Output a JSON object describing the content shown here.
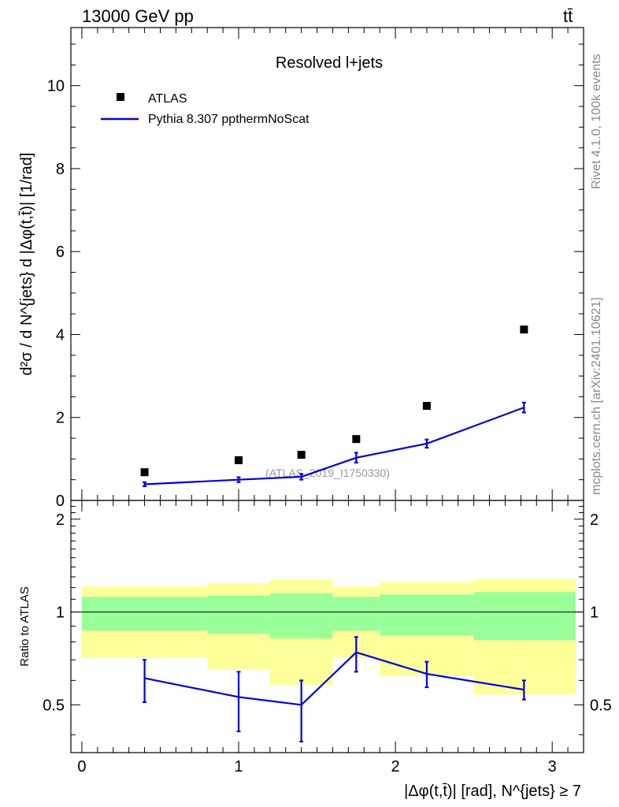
{
  "header": {
    "energy_label": "13000 GeV pp",
    "process_label": "tt̄"
  },
  "side_labels": {
    "rivet": "Rivet 4.1.0,  100k events",
    "source": "mcplots.cern.ch [arXiv:2401.10621]"
  },
  "colors": {
    "mc_line": "#0000e0",
    "data_marker": "#000000",
    "band_inner": "#99ff99",
    "band_outer": "#ffff99",
    "watermark": "#999999"
  },
  "chart_data": [
    {
      "type": "scatter",
      "panel": "main",
      "title": "Resolved l+jets",
      "watermark": "(ATLAS_2019_I1750330)",
      "ylabel": "d²σ / d N^{jets} d |Δφ(t,t̄)| [1/rad]",
      "ylim": [
        0,
        11.4
      ],
      "xlim": [
        -0.07,
        3.2
      ],
      "y_ticks": [
        "0",
        "2",
        "4",
        "6",
        "8",
        "10"
      ],
      "y_tick_values": [
        0,
        2,
        4,
        6,
        8,
        10
      ],
      "legend": [
        {
          "label": "ATLAS",
          "kind": "marker"
        },
        {
          "label": "Pythia 8.307 ppthermNoScat",
          "kind": "line"
        }
      ],
      "series": [
        {
          "name": "ATLAS",
          "x": [
            0.4,
            1.0,
            1.4,
            1.75,
            2.2,
            2.82
          ],
          "values": [
            0.68,
            0.97,
            1.1,
            1.48,
            2.28,
            4.12
          ]
        },
        {
          "name": "Pythia 8.307 ppthermNoScat",
          "x": [
            0.4,
            1.0,
            1.4,
            1.75,
            2.2,
            2.82
          ],
          "values": [
            0.39,
            0.5,
            0.57,
            1.03,
            1.37,
            2.24
          ],
          "err": [
            0.05,
            0.06,
            0.07,
            0.12,
            0.1,
            0.12
          ]
        }
      ]
    },
    {
      "type": "line",
      "panel": "ratio",
      "ylabel": "Ratio to ATLAS",
      "xlabel": "|Δφ(t,t̄)| [rad], N^{jets} ≥ 7",
      "ylim": [
        0.35,
        2.3
      ],
      "xlim": [
        -0.07,
        3.2
      ],
      "x_ticks": [
        "0",
        "1",
        "2",
        "3"
      ],
      "x_tick_values": [
        0,
        1,
        2,
        3
      ],
      "y_ticks": [
        "0.5",
        "1",
        "2"
      ],
      "y_tick_values": [
        0.5,
        1,
        2
      ],
      "bins": [
        {
          "lo": 0.0,
          "hi": 0.8,
          "inner": [
            0.87,
            1.12
          ],
          "outer": [
            0.71,
            1.21
          ]
        },
        {
          "lo": 0.8,
          "hi": 1.2,
          "inner": [
            0.85,
            1.13
          ],
          "outer": [
            0.65,
            1.24
          ]
        },
        {
          "lo": 1.2,
          "hi": 1.6,
          "inner": [
            0.82,
            1.15
          ],
          "outer": [
            0.58,
            1.27
          ]
        },
        {
          "lo": 1.6,
          "hi": 1.9,
          "inner": [
            0.87,
            1.12
          ],
          "outer": [
            0.71,
            1.21
          ]
        },
        {
          "lo": 1.9,
          "hi": 2.5,
          "inner": [
            0.84,
            1.14
          ],
          "outer": [
            0.62,
            1.25
          ]
        },
        {
          "lo": 2.5,
          "hi": 3.15,
          "inner": [
            0.81,
            1.16
          ],
          "outer": [
            0.54,
            1.28
          ]
        }
      ],
      "series": [
        {
          "name": "Pythia 8.307 ppthermNoScat",
          "x": [
            0.4,
            1.0,
            1.4,
            1.75,
            2.2,
            2.82
          ],
          "values": [
            0.61,
            0.53,
            0.5,
            0.74,
            0.63,
            0.56
          ],
          "err_lo": [
            0.1,
            0.12,
            0.12,
            0.1,
            0.06,
            0.04
          ],
          "err_hi": [
            0.09,
            0.11,
            0.1,
            0.09,
            0.06,
            0.04
          ]
        }
      ]
    }
  ]
}
